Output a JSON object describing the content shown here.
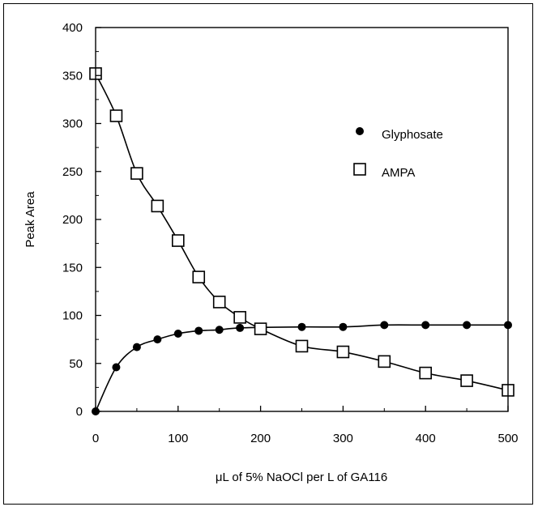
{
  "chart_data": {
    "type": "scatter",
    "title": "",
    "xlabel": "μL of 5% NaOCl per L of GA116",
    "ylabel": "Peak Area",
    "xlim": [
      0,
      500
    ],
    "ylim": [
      0,
      400
    ],
    "x_ticks": [
      0,
      100,
      200,
      300,
      400,
      500
    ],
    "y_ticks": [
      0,
      50,
      100,
      150,
      200,
      250,
      300,
      350,
      400
    ],
    "legend_position": "right-upper",
    "series": [
      {
        "name": "Glyphosate",
        "marker": "filled-circle",
        "color": "#000000",
        "points": [
          [
            0,
            0
          ],
          [
            25,
            46
          ],
          [
            50,
            67
          ],
          [
            75,
            75
          ],
          [
            100,
            81
          ],
          [
            125,
            84
          ],
          [
            150,
            85
          ],
          [
            175,
            87
          ],
          [
            250,
            88
          ],
          [
            300,
            88
          ],
          [
            350,
            90
          ],
          [
            400,
            90
          ],
          [
            450,
            90
          ],
          [
            500,
            90
          ]
        ]
      },
      {
        "name": "AMPA",
        "marker": "open-square",
        "color": "#000000",
        "points": [
          [
            0,
            352
          ],
          [
            25,
            308
          ],
          [
            50,
            248
          ],
          [
            75,
            214
          ],
          [
            100,
            178
          ],
          [
            125,
            140
          ],
          [
            150,
            114
          ],
          [
            175,
            98
          ],
          [
            200,
            86
          ],
          [
            250,
            68
          ],
          [
            300,
            62
          ],
          [
            350,
            52
          ],
          [
            400,
            40
          ],
          [
            450,
            32
          ],
          [
            500,
            22
          ]
        ]
      }
    ]
  }
}
